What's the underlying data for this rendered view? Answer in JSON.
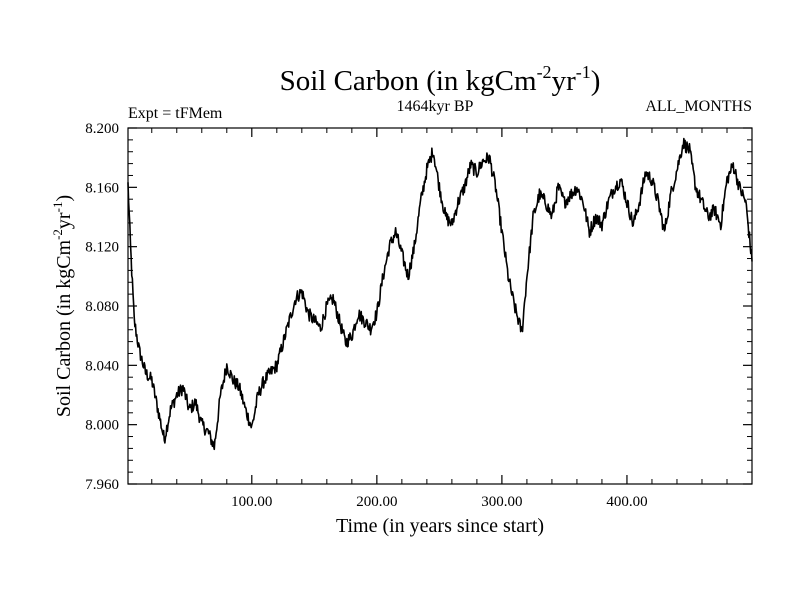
{
  "chart_data": {
    "type": "line",
    "title": {
      "main": "Soil Carbon (in kgCm",
      "sup1": "-2",
      "mid": "yr",
      "sup2": "-1",
      "end": ")"
    },
    "subtitle_left": "Expt = tFMem",
    "subtitle_center": "1464kyr BP",
    "subtitle_right": "ALL_MONTHS",
    "xlabel": "Time (in years since start)",
    "ylabel": {
      "main": "Soil Carbon (in kgCm",
      "sup1": "-2",
      "mid": "yr",
      "sup2": "-1",
      "end": ")"
    },
    "xlim": [
      1,
      500
    ],
    "ylim": [
      7.96,
      8.2
    ],
    "x_ticks": [
      {
        "value": 100,
        "label": "100.00"
      },
      {
        "value": 200,
        "label": "200.00"
      },
      {
        "value": 300,
        "label": "300.00"
      },
      {
        "value": 400,
        "label": "400.00"
      }
    ],
    "y_ticks": [
      {
        "value": 7.96,
        "label": "7.960"
      },
      {
        "value": 8.0,
        "label": "8.000"
      },
      {
        "value": 8.04,
        "label": "8.040"
      },
      {
        "value": 8.08,
        "label": "8.080"
      },
      {
        "value": 8.12,
        "label": "8.120"
      },
      {
        "value": 8.16,
        "label": "8.160"
      },
      {
        "value": 8.2,
        "label": "8.200"
      }
    ],
    "series": [
      {
        "name": "Soil Carbon",
        "x": [
          1,
          3,
          6,
          10,
          15,
          20,
          25,
          30,
          35,
          40,
          45,
          50,
          55,
          60,
          65,
          70,
          75,
          80,
          85,
          90,
          95,
          100,
          105,
          110,
          115,
          120,
          125,
          130,
          135,
          140,
          145,
          150,
          155,
          160,
          165,
          170,
          175,
          180,
          185,
          190,
          195,
          200,
          205,
          210,
          215,
          220,
          225,
          230,
          235,
          240,
          245,
          250,
          255,
          260,
          265,
          270,
          275,
          280,
          285,
          290,
          295,
          300,
          305,
          310,
          316,
          320,
          325,
          330,
          335,
          340,
          345,
          350,
          355,
          360,
          365,
          370,
          375,
          380,
          385,
          390,
          395,
          400,
          405,
          410,
          415,
          420,
          425,
          430,
          435,
          440,
          445,
          450,
          455,
          460,
          465,
          470,
          475,
          480,
          485,
          490,
          495,
          500
        ],
        "values": [
          8.162,
          8.12,
          8.07,
          8.05,
          8.035,
          8.03,
          8.01,
          7.99,
          8.01,
          8.02,
          8.025,
          8.01,
          8.015,
          8.0,
          7.995,
          7.985,
          8.02,
          8.04,
          8.03,
          8.025,
          8.01,
          7.998,
          8.02,
          8.03,
          8.035,
          8.04,
          8.055,
          8.07,
          8.085,
          8.09,
          8.075,
          8.07,
          8.065,
          8.08,
          8.085,
          8.07,
          8.055,
          8.06,
          8.075,
          8.07,
          8.065,
          8.075,
          8.1,
          8.12,
          8.13,
          8.115,
          8.1,
          8.12,
          8.15,
          8.172,
          8.185,
          8.16,
          8.14,
          8.135,
          8.15,
          8.16,
          8.175,
          8.17,
          8.178,
          8.18,
          8.16,
          8.13,
          8.1,
          8.08,
          8.062,
          8.1,
          8.14,
          8.155,
          8.15,
          8.14,
          8.16,
          8.15,
          8.155,
          8.16,
          8.15,
          8.13,
          8.14,
          8.135,
          8.15,
          8.16,
          8.165,
          8.15,
          8.135,
          8.15,
          8.17,
          8.165,
          8.15,
          8.13,
          8.155,
          8.172,
          8.19,
          8.185,
          8.16,
          8.15,
          8.14,
          8.145,
          8.135,
          8.165,
          8.175,
          8.16,
          8.15,
          8.11
        ]
      }
    ]
  }
}
